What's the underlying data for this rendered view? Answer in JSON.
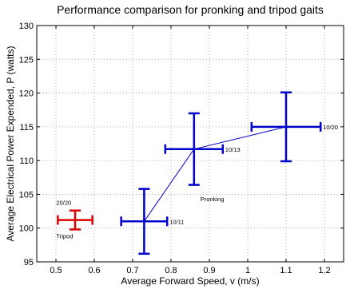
{
  "chart_data": {
    "type": "scatter",
    "title": "Performance comparison for pronking and tripod gaits",
    "xlabel": "Average Forward Speed, v (m/s)",
    "ylabel": "Average Electrical Power Expended, P (watts)",
    "xlim": [
      0.45,
      1.25
    ],
    "ylim": [
      95,
      130
    ],
    "xticks": [
      0.5,
      0.6,
      0.7,
      0.8,
      0.9,
      1,
      1.1,
      1.2
    ],
    "yticks": [
      95,
      100,
      105,
      110,
      115,
      120,
      125,
      130
    ],
    "grid": true,
    "colors": {
      "pronking": "#0000cc",
      "tripod": "#dd0000",
      "grid": "#999999"
    },
    "series": [
      {
        "label_text": "Pronking",
        "connected": true,
        "points": [
          {
            "x": 0.73,
            "y": 101,
            "x_err": 0.06,
            "y_err": 4.8,
            "label": "10/11"
          },
          {
            "x": 0.86,
            "y": 111.7,
            "x_err": 0.075,
            "y_err": 5.3,
            "label": "10/13"
          },
          {
            "x": 1.1,
            "y": 115,
            "x_err": 0.09,
            "y_err": 5.1,
            "label": "10/20"
          }
        ]
      },
      {
        "label_text": "Tripod",
        "connected": false,
        "points": [
          {
            "x": 0.55,
            "y": 101.2,
            "x_err": 0.045,
            "y_err": 1.4,
            "label": "20/20"
          }
        ]
      }
    ]
  }
}
